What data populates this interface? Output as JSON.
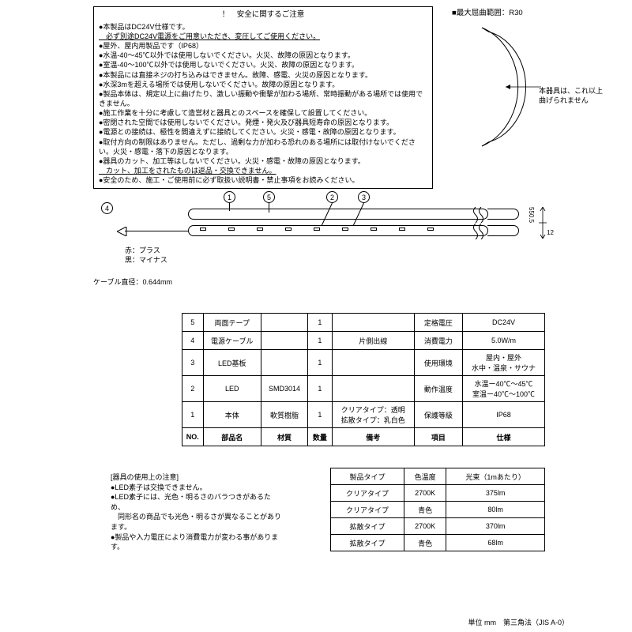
{
  "safety": {
    "title": "！　安全に関するご注意",
    "lines": [
      "●本製品はDC24V仕様です。",
      "　必ず別途DC24V電源をご用意いただき、変圧してご使用ください。",
      "●屋外、屋内用製品です（IP68）",
      "●水温-40～45℃以外では使用しないでください。火災、故障の原因となります。",
      "●室温-40～100℃以外では使用しないでください。火災、故障の原因となります。",
      "●本製品には直接ネジの打ち込みはできません。故障、感電、火災の原因となります。",
      "●水深3mを超える場所では使用しないでください。故障の原因となります。",
      "●製品本体は、規定以上に曲げたり、激しい振動や衝撃が加わる場所、常時振動がある場所では使用できません。",
      "●施工作業を十分に考慮して造営材と器具とのスペースを確保して設置してください。",
      "●密閉された空間では使用しないでください。発煙・発火及び器具短寿命の原因となります。",
      "●電源との接続は、極性を間違えずに接続してください。火災・感電・故障の原因となります。",
      "●取付方向の制限はありません。ただし、過剰な力が加わる恐れのある場所には取付けないでください。火災・感電・落下の原因となります。",
      "●器具のカット、加工等はしないでください。火災・感電・故障の原因となります。",
      "　カット、加工をされたものは返品・交換できません。",
      "●安全のため、施工・ご使用前に必ず取扱い説明書・禁止事項をお読みください。"
    ],
    "underline_idx": [
      1,
      13
    ]
  },
  "bend": {
    "label": "■最大屈曲範囲：R30",
    "note": "本器具は、これ以上\n曲げられません"
  },
  "diagram": {
    "callouts": [
      "1",
      "2",
      "3",
      "4",
      "5"
    ],
    "red": "赤：プラス",
    "black": "黒：マイナス",
    "cable": "ケーブル直径：0.644mm",
    "dim1": "550.5",
    "dim2": "12"
  },
  "parts": {
    "rows": [
      [
        "5",
        "両面テープ",
        "",
        "1",
        "",
        "定格電圧",
        "DC24V"
      ],
      [
        "4",
        "電源ケーブル",
        "",
        "1",
        "片側出線",
        "消費電力",
        "5.0W/m"
      ],
      [
        "3",
        "LED基板",
        "",
        "1",
        "",
        "使用環境",
        "屋内・屋外\n水中・温泉・サウナ"
      ],
      [
        "2",
        "LED",
        "SMD3014",
        "1",
        "",
        "動作温度",
        "水温ー40℃～45℃\n室温ー40℃～100℃"
      ],
      [
        "1",
        "本体",
        "軟質樹脂",
        "1",
        "クリアタイプ：透明\n拡散タイプ：乳白色",
        "保護等級",
        "IP68"
      ],
      [
        "NO.",
        "部品名",
        "材質",
        "数量",
        "備考",
        "項目",
        "仕様"
      ]
    ]
  },
  "usage": {
    "title": "[器具の使用上の注意]",
    "lines": [
      "●LED素子は交換できません。",
      "●LED素子には、光色・明るさのバラつきがあるため、",
      "　同形名の商品でも光色・明るさが異なることがあります。",
      "●製品や入力電圧により消費電力が変わる事があります。"
    ]
  },
  "types": {
    "header": [
      "製品タイプ",
      "色温度",
      "光束（1mあたり）"
    ],
    "rows": [
      [
        "クリアタイプ",
        "2700K",
        "375lm"
      ],
      [
        "クリアタイプ",
        "青色",
        "80lm"
      ],
      [
        "拡散タイプ",
        "2700K",
        "370lm"
      ],
      [
        "拡散タイプ",
        "青色",
        "68lm"
      ]
    ]
  },
  "footer": "単位 mm　第三角法（JIS A-0）"
}
